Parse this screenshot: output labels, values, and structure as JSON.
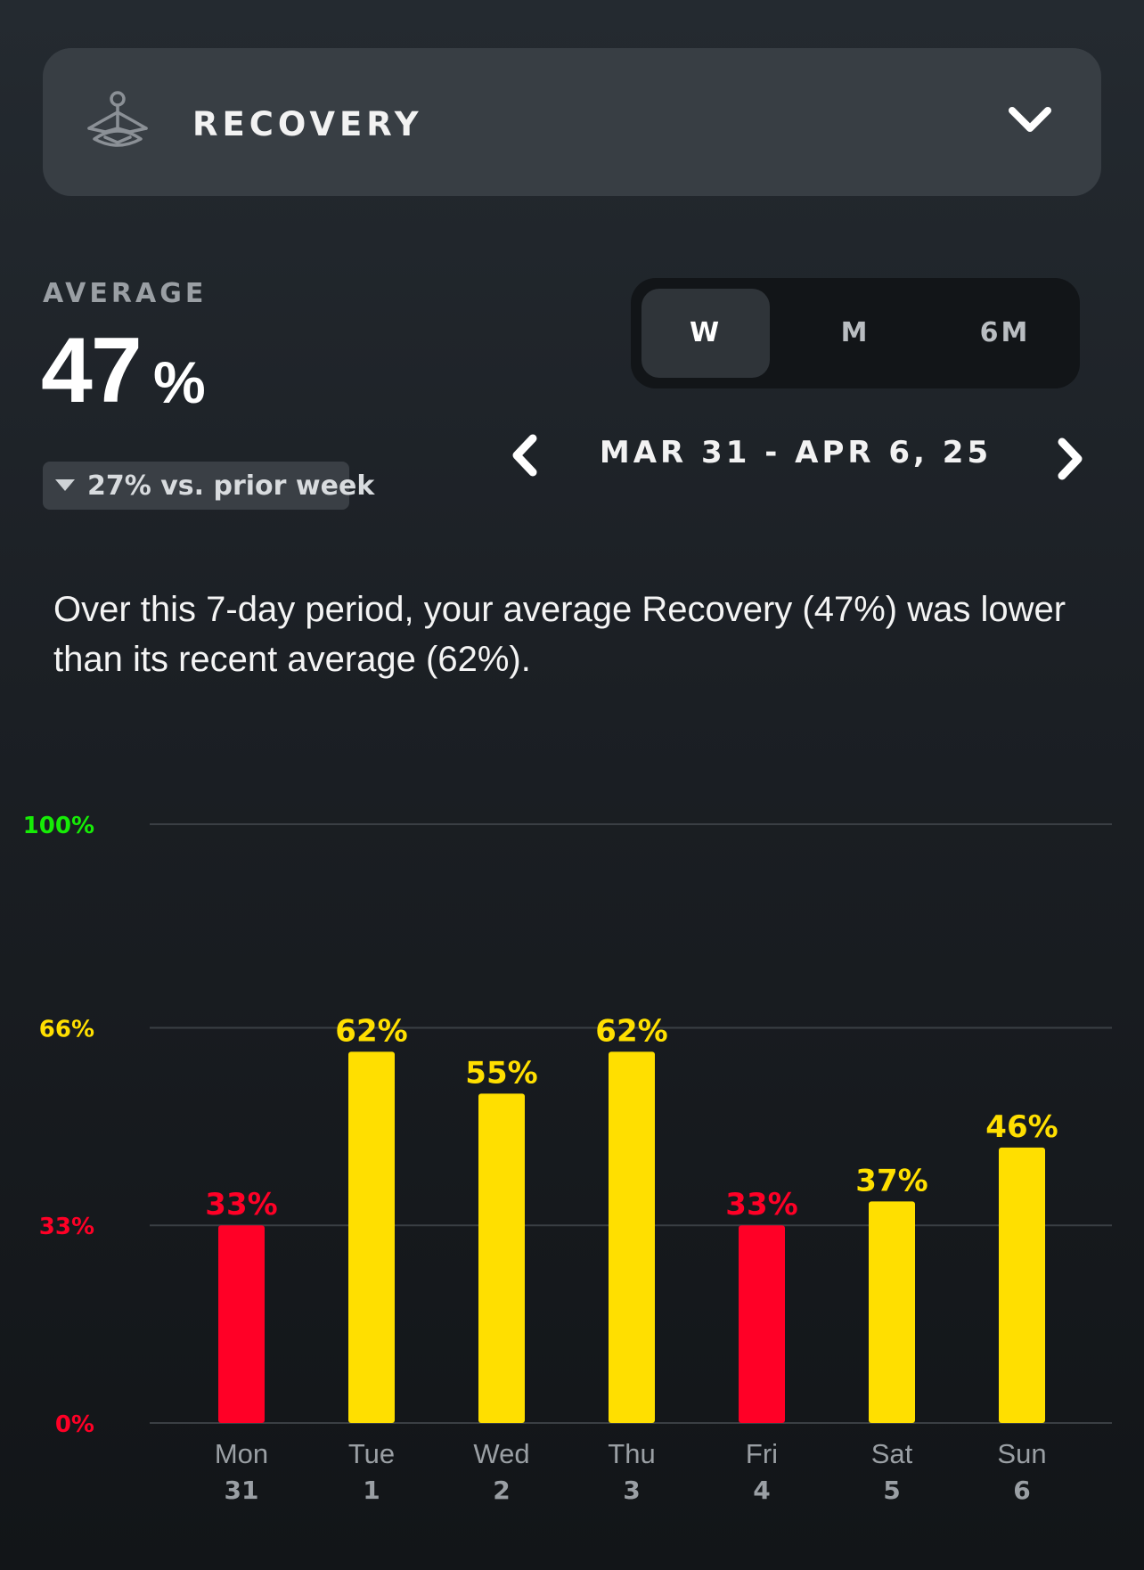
{
  "header": {
    "title": "RECOVERY",
    "icon": "meditation-icon",
    "dropdown_icon": "chevron-down-icon"
  },
  "summary": {
    "average_label": "AVERAGE",
    "average_value": "47",
    "average_unit": "%",
    "trend_text": "27% vs. prior week",
    "trend_direction": "down"
  },
  "period_selector": {
    "options": [
      "W",
      "M",
      "6M"
    ],
    "selected": "W"
  },
  "date_nav": {
    "range": "MAR 31 - APR 6, 25",
    "prev_icon": "chevron-left-icon",
    "next_icon": "chevron-right-icon"
  },
  "description": "Over this 7-day period, your average Recovery (47%) was lower than its recent average (62%).",
  "colors": {
    "red": "#ff0026",
    "yellow": "#ffdf00",
    "green": "#16ec06",
    "grid": "#3a3f44",
    "tick_label": "#9a9fa4"
  },
  "chart_data": {
    "type": "bar",
    "categories": [
      "Mon",
      "Tue",
      "Wed",
      "Thu",
      "Fri",
      "Sat",
      "Sun"
    ],
    "category_dates": [
      "31",
      "1",
      "2",
      "3",
      "4",
      "5",
      "6"
    ],
    "values": [
      33,
      62,
      55,
      62,
      33,
      37,
      46
    ],
    "value_labels": [
      "33%",
      "62%",
      "55%",
      "62%",
      "33%",
      "37%",
      "46%"
    ],
    "bar_colors": [
      "red",
      "yellow",
      "yellow",
      "yellow",
      "red",
      "yellow",
      "yellow"
    ],
    "ylim": [
      0,
      100
    ],
    "y_ticks": [
      {
        "value": 0,
        "label": "0%",
        "color": "red"
      },
      {
        "value": 33,
        "label": "33%",
        "color": "red"
      },
      {
        "value": 66,
        "label": "66%",
        "color": "yellow"
      },
      {
        "value": 100,
        "label": "100%",
        "color": "green"
      }
    ],
    "grid": true,
    "legend": "none",
    "title": "",
    "xlabel": "",
    "ylabel": ""
  }
}
